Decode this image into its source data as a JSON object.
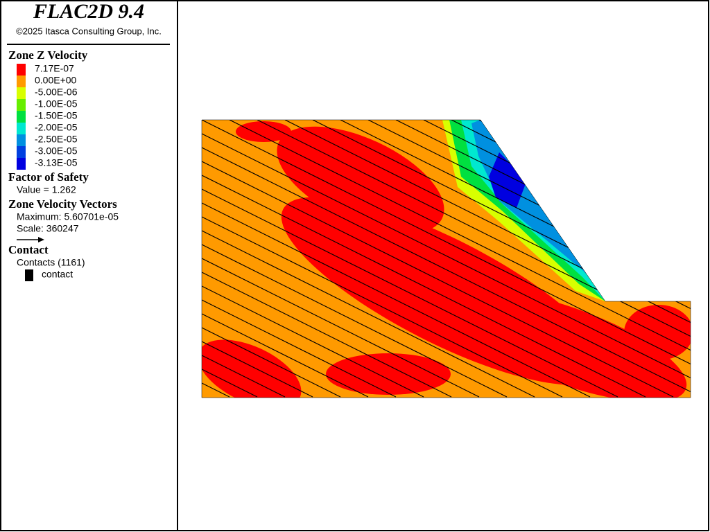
{
  "header": {
    "title": "FLAC2D 9.4",
    "copyright": "©2025 Itasca Consulting Group, Inc."
  },
  "legend": {
    "zone_velocity": {
      "title": "Zone Z Velocity",
      "entries": [
        {
          "label": "7.17E-07",
          "color": "#ff0000"
        },
        {
          "label": "0.00E+00",
          "color": "#ff9a00"
        },
        {
          "label": "-5.00E-06",
          "color": "#d8ff00"
        },
        {
          "label": "-1.00E-05",
          "color": "#66ee00"
        },
        {
          "label": "-1.50E-05",
          "color": "#00e040"
        },
        {
          "label": "-2.00E-05",
          "color": "#00e8d0"
        },
        {
          "label": "-2.50E-05",
          "color": "#0090e0"
        },
        {
          "label": "-3.00E-05",
          "color": "#0040e0"
        },
        {
          "label": "-3.13E-05",
          "color": "#0000e0"
        }
      ]
    },
    "factor_of_safety": {
      "title": "Factor of Safety",
      "value": "Value = 1.262"
    },
    "velocity_vectors": {
      "title": "Zone Velocity Vectors",
      "maximum": "Maximum: 5.60701e-05",
      "scale": "Scale: 360247"
    },
    "contact": {
      "title": "Contact",
      "count": "Contacts (1161)",
      "entry": "contact"
    }
  }
}
